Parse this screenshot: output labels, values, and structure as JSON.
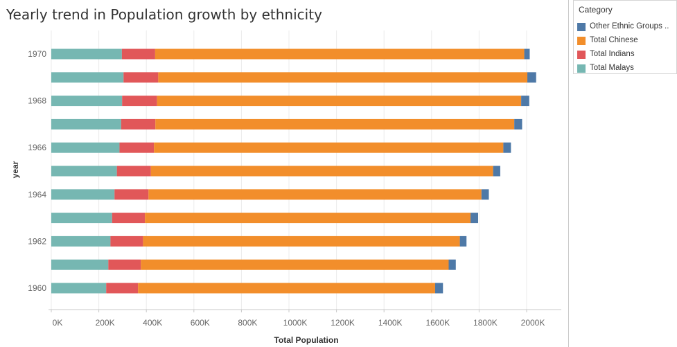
{
  "chart_data": {
    "type": "bar",
    "orientation": "horizontal",
    "stacked": true,
    "title": "Yearly trend in Population growth by ethnicity",
    "xlabel": "Total Population",
    "ylabel": "year",
    "xlim": [
      0,
      2200000
    ],
    "x_ticks": [
      0,
      200000,
      400000,
      600000,
      800000,
      1000000,
      1200000,
      1400000,
      1600000,
      1800000,
      2000000
    ],
    "x_tick_labels": [
      "0K",
      "200K",
      "400K",
      "600K",
      "800K",
      "1000K",
      "1200K",
      "1400K",
      "1600K",
      "1800K",
      "2000K"
    ],
    "categories": [
      "1970",
      "1969",
      "1968",
      "1967",
      "1966",
      "1965",
      "1964",
      "1963",
      "1962",
      "1961",
      "1960"
    ],
    "category_labels": [
      "1970",
      "",
      "1968",
      "",
      "1966",
      "",
      "1964",
      "",
      "1962",
      "",
      "1960"
    ],
    "series": [
      {
        "name": "Total Malays",
        "color": "#76b7b2",
        "values": [
          297000,
          304000,
          298000,
          294000,
          287000,
          276000,
          266000,
          256000,
          249000,
          240000,
          231000
        ]
      },
      {
        "name": "Total Indians",
        "color": "#e15759",
        "values": [
          140000,
          146000,
          147000,
          144000,
          145000,
          143000,
          143000,
          138000,
          137000,
          137000,
          134000
        ]
      },
      {
        "name": "Total Chinese",
        "color": "#f28e2b",
        "values": [
          1553000,
          1553000,
          1532000,
          1510000,
          1470000,
          1440000,
          1401000,
          1370000,
          1333000,
          1295000,
          1250000
        ]
      },
      {
        "name": "Other Ethnic Groups ..",
        "color": "#4e79a7",
        "values": [
          23000,
          37000,
          34000,
          33000,
          32000,
          30000,
          31000,
          32000,
          28000,
          30000,
          33000
        ]
      }
    ],
    "grid": true,
    "legend_position": "right"
  },
  "legend": {
    "title": "Category",
    "items": [
      {
        "label": "Other Ethnic Groups ..",
        "color": "#4e79a7"
      },
      {
        "label": "Total Chinese",
        "color": "#f28e2b"
      },
      {
        "label": "Total Indians",
        "color": "#e15759"
      },
      {
        "label": "Total Malays",
        "color": "#76b7b2"
      }
    ]
  }
}
